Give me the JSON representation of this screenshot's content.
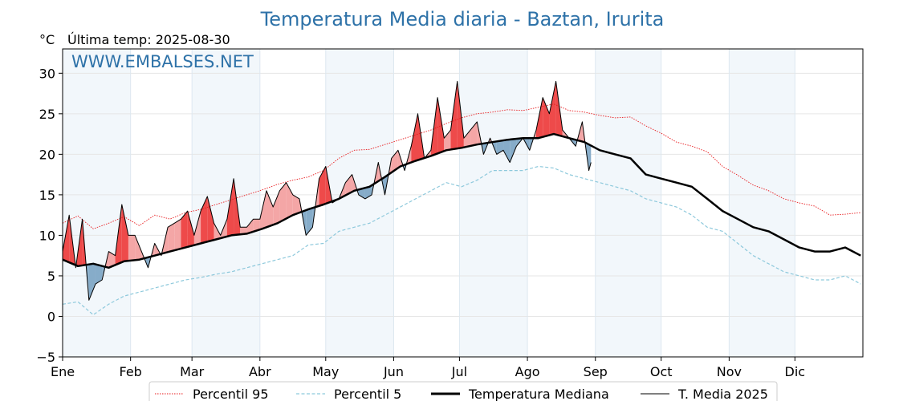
{
  "chart_data": {
    "type": "line",
    "title": "Temperatura Media diaria - Baztan, Irurita",
    "unit_label": "°C",
    "last_temp_label": "Última temp: 2025-08-30",
    "watermark": "WWW.EMBALSES.NET",
    "ylim": [
      -5,
      33
    ],
    "yticks": [
      -5,
      0,
      5,
      10,
      15,
      20,
      25,
      30
    ],
    "x_start": "2025-01-01",
    "x_end": "2025-12-31",
    "months": [
      "Ene",
      "Feb",
      "Mar",
      "Abr",
      "May",
      "Jun",
      "Jul",
      "Ago",
      "Sep",
      "Oct",
      "Nov",
      "Dic"
    ],
    "month_start_days": [
      1,
      32,
      60,
      91,
      121,
      152,
      182,
      213,
      244,
      274,
      305,
      335
    ],
    "grid": true,
    "shaded_months": [
      "Ene",
      "Mar",
      "May",
      "Jul",
      "Sep",
      "Nov"
    ],
    "legend_position": "bottom",
    "colors": {
      "p95": "#e8191c",
      "p5": "#8ec9dc",
      "median": "#000000",
      "current": "#000000",
      "above_fill": "#f4a6a6",
      "above_strong_fill": "#ee4a4a",
      "below_fill": "#86acc9",
      "shade": "#f2f7fb",
      "title": "#2e72a8"
    },
    "series": [
      {
        "name": "Percentil 95",
        "key": "p95",
        "style": "dotted",
        "x": [
          1,
          8,
          15,
          22,
          29,
          36,
          43,
          50,
          57,
          64,
          71,
          78,
          85,
          92,
          99,
          106,
          113,
          120,
          127,
          134,
          141,
          148,
          155,
          162,
          169,
          176,
          183,
          190,
          197,
          204,
          211,
          218,
          225,
          232,
          239,
          246,
          253,
          260,
          267,
          274,
          281,
          288,
          295,
          302,
          309,
          316,
          323,
          330,
          337,
          344,
          351,
          358,
          365
        ],
        "y": [
          11.5,
          12.4,
          10.8,
          11.5,
          12.3,
          11.2,
          12.5,
          12.0,
          12.8,
          13.2,
          13.8,
          14.4,
          15.0,
          15.6,
          16.3,
          16.8,
          17.2,
          18.0,
          19.5,
          20.5,
          20.6,
          21.2,
          21.8,
          22.4,
          23.0,
          23.8,
          24.5,
          25.0,
          25.2,
          25.5,
          25.4,
          25.8,
          26.2,
          25.4,
          25.2,
          24.8,
          24.5,
          24.6,
          23.5,
          22.6,
          21.5,
          21.0,
          20.3,
          18.5,
          17.4,
          16.2,
          15.5,
          14.5,
          14.0,
          13.6,
          12.5,
          12.6,
          12.8
        ]
      },
      {
        "name": "Percentil 5",
        "key": "p5",
        "style": "dashed",
        "x": [
          1,
          8,
          15,
          22,
          29,
          36,
          43,
          50,
          57,
          64,
          71,
          78,
          85,
          92,
          99,
          106,
          113,
          120,
          127,
          134,
          141,
          148,
          155,
          162,
          169,
          176,
          183,
          190,
          197,
          204,
          211,
          218,
          225,
          232,
          239,
          246,
          253,
          260,
          267,
          274,
          281,
          288,
          295,
          302,
          309,
          316,
          323,
          330,
          337,
          344,
          351,
          358,
          365
        ],
        "y": [
          1.5,
          1.8,
          0.2,
          1.5,
          2.5,
          3.0,
          3.5,
          4.0,
          4.5,
          4.8,
          5.2,
          5.5,
          6.0,
          6.5,
          7.0,
          7.5,
          8.8,
          9.0,
          10.5,
          11.0,
          11.5,
          12.5,
          13.5,
          14.5,
          15.5,
          16.5,
          16.0,
          16.8,
          18.0,
          18.0,
          18.0,
          18.5,
          18.3,
          17.5,
          17.0,
          16.5,
          16.0,
          15.5,
          14.5,
          14.0,
          13.5,
          12.5,
          11.0,
          10.5,
          9.0,
          7.5,
          6.5,
          5.5,
          5.0,
          4.5,
          4.5,
          5.0,
          4.0
        ]
      },
      {
        "name": "Temperatura Mediana",
        "key": "median",
        "style": "solid-thick",
        "x": [
          1,
          8,
          15,
          22,
          29,
          36,
          43,
          50,
          57,
          64,
          71,
          78,
          85,
          92,
          99,
          106,
          113,
          120,
          127,
          134,
          141,
          148,
          155,
          162,
          169,
          176,
          183,
          190,
          197,
          204,
          211,
          218,
          225,
          232,
          239,
          246,
          253,
          260,
          267,
          274,
          281,
          288,
          295,
          302,
          309,
          316,
          323,
          330,
          337,
          344,
          351,
          358,
          365
        ],
        "y": [
          7.0,
          6.2,
          6.5,
          6.0,
          6.8,
          7.0,
          7.5,
          8.0,
          8.5,
          9.0,
          9.5,
          10.0,
          10.2,
          10.8,
          11.5,
          12.5,
          13.2,
          13.8,
          14.5,
          15.5,
          16.0,
          17.2,
          18.5,
          19.2,
          19.8,
          20.5,
          20.8,
          21.2,
          21.5,
          21.8,
          22.0,
          22.0,
          22.5,
          22.0,
          21.5,
          20.5,
          20.0,
          19.5,
          17.5,
          17.0,
          16.5,
          16.0,
          14.5,
          13.0,
          12.0,
          11.0,
          10.5,
          9.5,
          8.5,
          8.0,
          8.0,
          8.5,
          7.5
        ]
      },
      {
        "name": "T. Media 2025",
        "key": "current",
        "style": "solid-thin",
        "x": [
          1,
          4,
          7,
          10,
          13,
          16,
          19,
          22,
          25,
          28,
          31,
          34,
          37,
          40,
          43,
          46,
          49,
          52,
          55,
          58,
          61,
          64,
          67,
          70,
          73,
          76,
          79,
          82,
          85,
          88,
          91,
          94,
          97,
          100,
          103,
          106,
          109,
          112,
          115,
          118,
          121,
          124,
          127,
          130,
          133,
          136,
          139,
          142,
          145,
          148,
          151,
          154,
          157,
          160,
          163,
          166,
          169,
          172,
          175,
          178,
          181,
          184,
          187,
          190,
          193,
          196,
          199,
          202,
          205,
          208,
          211,
          214,
          217,
          220,
          223,
          226,
          229,
          232,
          235,
          238,
          241,
          242
        ],
        "y": [
          8.0,
          12.5,
          6.0,
          12.0,
          2.0,
          4.0,
          4.5,
          8.0,
          7.5,
          13.8,
          10.0,
          10.0,
          8.0,
          6.0,
          9.0,
          7.5,
          11.0,
          11.5,
          12.0,
          13.0,
          10.0,
          13.0,
          14.8,
          11.5,
          10.0,
          12.0,
          17.0,
          11.0,
          11.0,
          12.0,
          12.0,
          15.5,
          13.5,
          15.5,
          16.5,
          15.0,
          14.5,
          10.0,
          11.0,
          17.0,
          18.5,
          14.0,
          14.5,
          16.5,
          17.5,
          15.0,
          14.5,
          15.0,
          19.0,
          15.0,
          19.5,
          20.5,
          18.0,
          21.0,
          25.0,
          19.5,
          20.5,
          27.0,
          22.0,
          23.0,
          29.0,
          22.0,
          23.0,
          24.0,
          20.0,
          22.0,
          20.0,
          20.5,
          19.0,
          21.0,
          22.0,
          20.5,
          23.0,
          27.0,
          25.0,
          29.0,
          23.0,
          22.0,
          21.0,
          24.0,
          18.0,
          19.0
        ]
      }
    ]
  }
}
